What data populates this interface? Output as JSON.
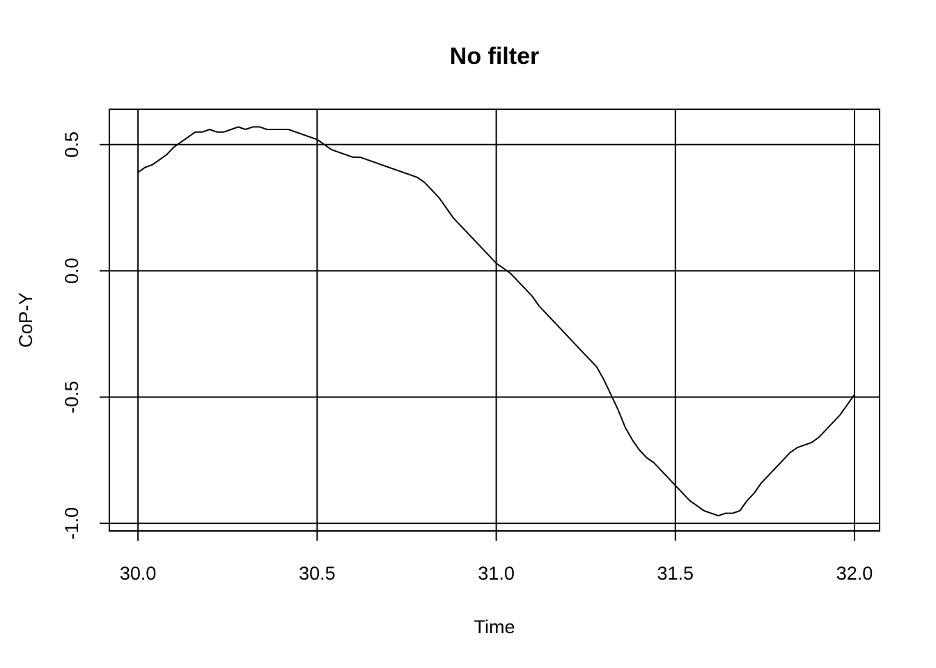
{
  "chart_data": {
    "type": "line",
    "title": "No filter",
    "xlabel": "Time",
    "ylabel": "CoP-Y",
    "xlim": [
      29.92,
      32.07
    ],
    "ylim": [
      -1.03,
      0.64
    ],
    "x_ticks": [
      30.0,
      30.5,
      31.0,
      31.5,
      32.0
    ],
    "x_tick_labels": [
      "30.0",
      "30.5",
      "31.0",
      "31.5",
      "32.0"
    ],
    "y_ticks": [
      -1.0,
      -0.5,
      0.0,
      0.5
    ],
    "y_tick_labels": [
      "-1.0",
      "-0.5",
      "0.0",
      "0.5"
    ],
    "grid": true,
    "series": [
      {
        "color": "#000000",
        "x": [
          30.0,
          30.02,
          30.04,
          30.06,
          30.08,
          30.1,
          30.12,
          30.14,
          30.16,
          30.18,
          30.2,
          30.22,
          30.24,
          30.26,
          30.28,
          30.3,
          30.32,
          30.34,
          30.36,
          30.38,
          30.4,
          30.42,
          30.44,
          30.46,
          30.48,
          30.5,
          30.52,
          30.54,
          30.56,
          30.58,
          30.6,
          30.62,
          30.64,
          30.66,
          30.68,
          30.7,
          30.72,
          30.74,
          30.76,
          30.78,
          30.8,
          30.82,
          30.84,
          30.86,
          30.88,
          30.9,
          30.92,
          30.94,
          30.96,
          30.98,
          31.0,
          31.02,
          31.04,
          31.06,
          31.08,
          31.1,
          31.12,
          31.14,
          31.16,
          31.18,
          31.2,
          31.22,
          31.24,
          31.26,
          31.28,
          31.3,
          31.32,
          31.34,
          31.36,
          31.38,
          31.4,
          31.42,
          31.44,
          31.46,
          31.48,
          31.5,
          31.52,
          31.54,
          31.56,
          31.58,
          31.6,
          31.62,
          31.64,
          31.66,
          31.68,
          31.7,
          31.72,
          31.74,
          31.76,
          31.78,
          31.8,
          31.82,
          31.84,
          31.86,
          31.88,
          31.9,
          31.92,
          31.94,
          31.96,
          31.98,
          32.0
        ],
        "y": [
          0.39,
          0.41,
          0.42,
          0.44,
          0.46,
          0.49,
          0.51,
          0.53,
          0.55,
          0.55,
          0.56,
          0.55,
          0.55,
          0.56,
          0.57,
          0.56,
          0.57,
          0.57,
          0.56,
          0.56,
          0.56,
          0.56,
          0.55,
          0.54,
          0.53,
          0.52,
          0.5,
          0.48,
          0.47,
          0.46,
          0.45,
          0.45,
          0.44,
          0.43,
          0.42,
          0.41,
          0.4,
          0.39,
          0.38,
          0.37,
          0.35,
          0.32,
          0.29,
          0.25,
          0.21,
          0.18,
          0.15,
          0.12,
          0.09,
          0.06,
          0.03,
          0.01,
          -0.01,
          -0.04,
          -0.07,
          -0.1,
          -0.14,
          -0.17,
          -0.2,
          -0.23,
          -0.26,
          -0.29,
          -0.32,
          -0.35,
          -0.38,
          -0.43,
          -0.49,
          -0.55,
          -0.62,
          -0.67,
          -0.71,
          -0.74,
          -0.76,
          -0.79,
          -0.82,
          -0.85,
          -0.88,
          -0.91,
          -0.93,
          -0.95,
          -0.96,
          -0.97,
          -0.96,
          -0.96,
          -0.95,
          -0.91,
          -0.88,
          -0.84,
          -0.81,
          -0.78,
          -0.75,
          -0.72,
          -0.7,
          -0.69,
          -0.68,
          -0.66,
          -0.63,
          -0.6,
          -0.57,
          -0.53,
          -0.49
        ]
      }
    ]
  }
}
